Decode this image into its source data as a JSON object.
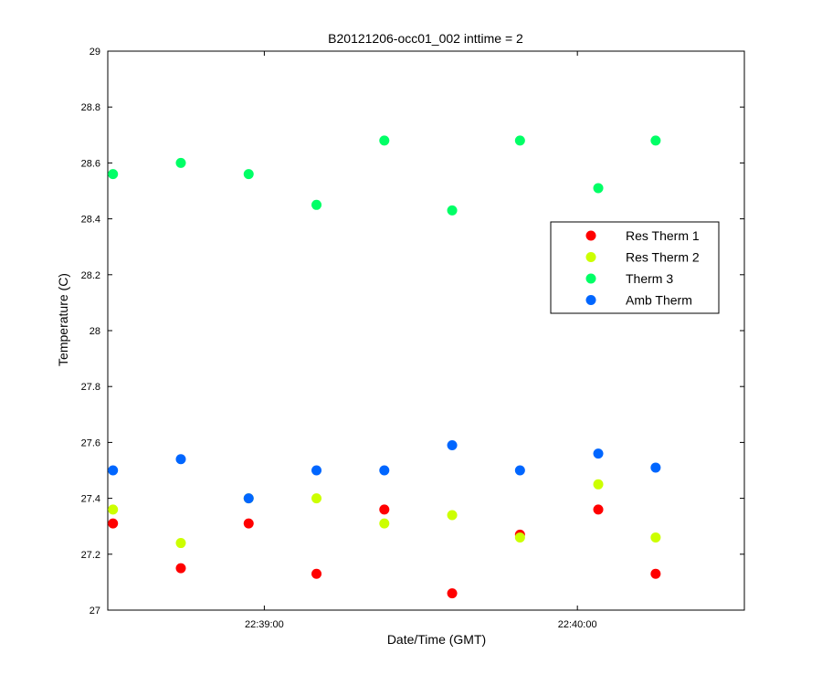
{
  "chart_data": {
    "type": "scatter",
    "title": "B20121206-occ01_002 inttime = 2",
    "xlabel": "Date/Time (GMT)",
    "ylabel": "Temperature (C)",
    "ylim": [
      27,
      29
    ],
    "yticks": [
      "27",
      "27.2",
      "27.4",
      "27.6",
      "27.8",
      "28",
      "28.2",
      "28.4",
      "28.6",
      "28.8",
      "29"
    ],
    "xlim": [
      "22:38:30",
      "22:40:32"
    ],
    "xticks": [
      "22:39:00",
      "22:40:00"
    ],
    "x": [
      "22:38:31",
      "22:38:44",
      "22:38:57",
      "22:39:10",
      "22:39:23",
      "22:39:36",
      "22:39:49",
      "22:40:04",
      "22:40:15"
    ],
    "series": [
      {
        "name": "Res Therm 1",
        "color": "#ff0000",
        "values": [
          27.31,
          27.15,
          27.31,
          27.13,
          27.36,
          27.06,
          27.27,
          27.36,
          27.13
        ]
      },
      {
        "name": "Res Therm 2",
        "color": "#ccff00",
        "values": [
          27.36,
          27.24,
          27.4,
          27.4,
          27.31,
          27.34,
          27.26,
          27.45,
          27.26
        ]
      },
      {
        "name": "Therm 3",
        "color": "#00ff66",
        "values": [
          28.56,
          28.6,
          28.56,
          28.45,
          28.68,
          28.43,
          28.68,
          28.51,
          28.68
        ]
      },
      {
        "name": "Amb Therm",
        "color": "#0066ff",
        "values": [
          27.5,
          27.54,
          27.4,
          27.5,
          27.5,
          27.59,
          27.5,
          27.56,
          27.51
        ]
      }
    ],
    "legend_position": "right",
    "grid": false
  }
}
